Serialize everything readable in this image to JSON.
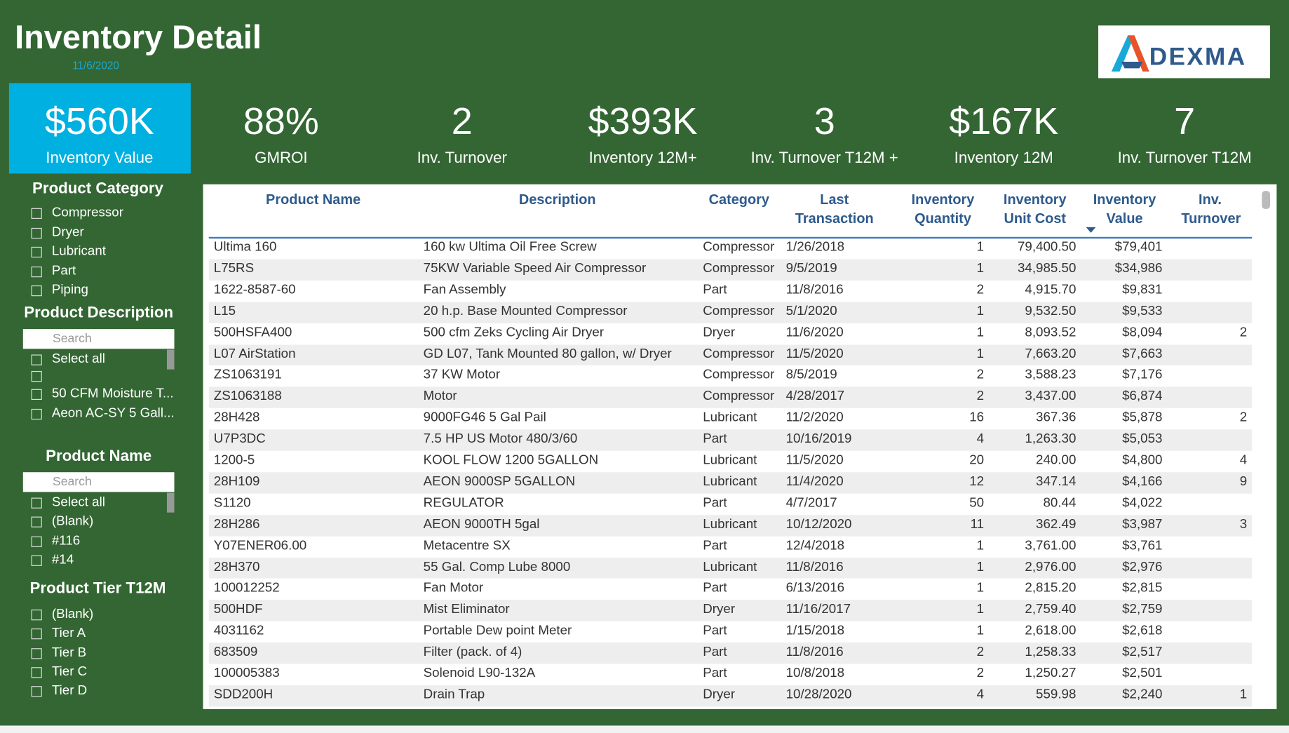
{
  "header": {
    "title": "Inventory Detail",
    "date": "11/6/2020",
    "logo": "DEXMA"
  },
  "kpis": [
    {
      "value": "$560K",
      "label": "Inventory Value"
    },
    {
      "value": "88%",
      "label": "GMROI"
    },
    {
      "value": "2",
      "label": "Inv. Turnover"
    },
    {
      "value": "$393K",
      "label": "Inventory 12M+"
    },
    {
      "value": "3",
      "label": "Inv. Turnover T12M +"
    },
    {
      "value": "$167K",
      "label": "Inventory 12M"
    },
    {
      "value": "7",
      "label": "Inv. Turnover T12M"
    }
  ],
  "filters": [
    {
      "title": "Product Category",
      "options": [
        "Compressor",
        "Dryer",
        "Lubricant",
        "Part",
        "Piping"
      ]
    },
    {
      "title": "Product Description",
      "search": "Search",
      "options": [
        "Select all",
        null,
        "50 CFM Moisture T...",
        "Aeon AC-SY 5 Gall..."
      ]
    },
    {
      "title": "Product Name",
      "search": "Search",
      "options": [
        "Select all",
        "(Blank)",
        "#116",
        "#14"
      ]
    },
    {
      "title": "Product Tier T12M",
      "options": [
        "(Blank)",
        "Tier A",
        "Tier B",
        "Tier C",
        "Tier D"
      ]
    }
  ],
  "table": {
    "columns": [
      "Product Name",
      "Description",
      "Category",
      "Last Transaction",
      "Inventory Quantity",
      "Inventory Unit Cost",
      "Inventory Value",
      "Inv. Turnover"
    ],
    "rows": [
      [
        "Ultima 160",
        "160 kw Ultima Oil Free Screw",
        "Compressor",
        "1/26/2018",
        1,
        "79,400.50",
        "$79,401",
        null
      ],
      [
        "L75RS",
        "75KW Variable Speed Air Compressor",
        "Compressor",
        "9/5/2019",
        1,
        "34,985.50",
        "$34,986",
        null
      ],
      [
        "1622-8587-60",
        "Fan Assembly",
        "Part",
        "11/8/2016",
        2,
        "4,915.70",
        "$9,831",
        null
      ],
      [
        "L15",
        "20 h.p. Base Mounted Compressor",
        "Compressor",
        "5/1/2020",
        1,
        "9,532.50",
        "$9,533",
        null
      ],
      [
        "500HSFA400",
        "500 cfm Zeks Cycling Air Dryer",
        "Dryer",
        "11/6/2020",
        1,
        "8,093.52",
        "$8,094",
        2
      ],
      [
        "L07 AirStation",
        "GD L07, Tank Mounted 80 gallon, w/ Dryer",
        "Compressor",
        "11/5/2020",
        1,
        "7,663.20",
        "$7,663",
        null
      ],
      [
        "ZS1063191",
        "37 KW Motor",
        "Compressor",
        "8/5/2019",
        2,
        "3,588.23",
        "$7,176",
        null
      ],
      [
        "ZS1063188",
        "Motor",
        "Compressor",
        "4/28/2017",
        2,
        "3,437.00",
        "$6,874",
        null
      ],
      [
        "28H428",
        "9000FG46 5 Gal Pail",
        "Lubricant",
        "11/2/2020",
        16,
        "367.36",
        "$5,878",
        2
      ],
      [
        "U7P3DC",
        "7.5 HP US Motor 480/3/60",
        "Part",
        "10/16/2019",
        4,
        "1,263.30",
        "$5,053",
        null
      ],
      [
        "1200-5",
        "KOOL FLOW 1200 5GALLON",
        "Lubricant",
        "11/5/2020",
        20,
        "240.00",
        "$4,800",
        4
      ],
      [
        "28H109",
        "AEON 9000SP 5GALLON",
        "Lubricant",
        "11/4/2020",
        12,
        "347.14",
        "$4,166",
        9
      ],
      [
        "S1120",
        "REGULATOR",
        "Part",
        "4/7/2017",
        50,
        "80.44",
        "$4,022",
        null
      ],
      [
        "28H286",
        "AEON 9000TH 5gal",
        "Lubricant",
        "10/12/2020",
        11,
        "362.49",
        "$3,987",
        3
      ],
      [
        "Y07ENER06.00",
        "Metacentre SX",
        "Part",
        "12/4/2018",
        1,
        "3,761.00",
        "$3,761",
        null
      ],
      [
        "28H370",
        "55 Gal. Comp Lube 8000",
        "Lubricant",
        "11/8/2016",
        1,
        "2,976.00",
        "$2,976",
        null
      ],
      [
        "100012252",
        "Fan Motor",
        "Part",
        "6/13/2016",
        1,
        "2,815.20",
        "$2,815",
        null
      ],
      [
        "500HDF",
        "Mist Eliminator",
        "Dryer",
        "11/16/2017",
        1,
        "2,759.40",
        "$2,759",
        null
      ],
      [
        "4031162",
        "Portable Dew point Meter",
        "Part",
        "1/15/2018",
        1,
        "2,618.00",
        "$2,618",
        null
      ],
      [
        "683509",
        "Filter (pack. of 4)",
        "Part",
        "11/8/2016",
        2,
        "1,258.33",
        "$2,517",
        null
      ],
      [
        "100005383",
        "Solenoid L90-132A",
        "Part",
        "10/8/2018",
        2,
        "1,250.27",
        "$2,501",
        null
      ],
      [
        "SDD200H",
        "Drain Trap",
        "Dryer",
        "10/28/2020",
        4,
        "559.98",
        "$2,240",
        1
      ]
    ]
  }
}
